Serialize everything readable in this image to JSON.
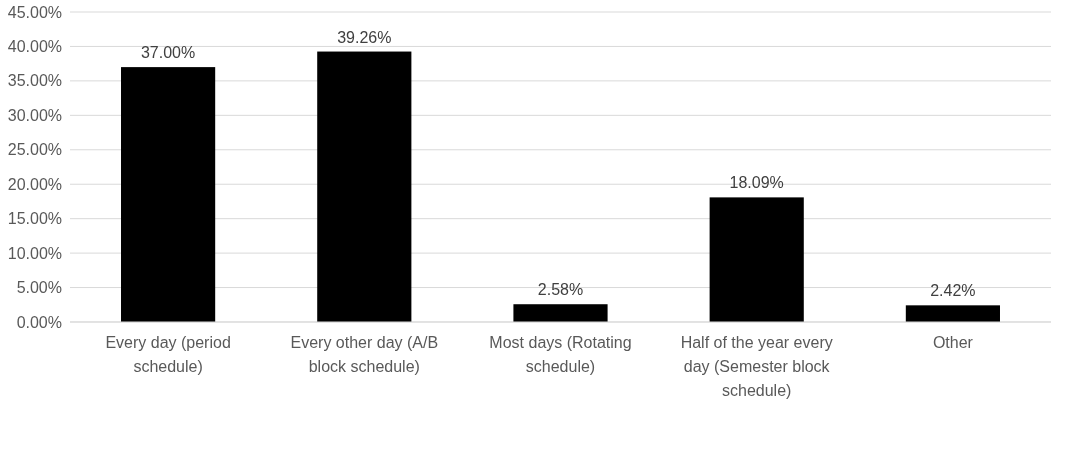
{
  "chart_data": {
    "type": "bar",
    "categories": [
      "Every day (period schedule)",
      "Every other day (A/B block schedule)",
      "Most days (Rotating schedule)",
      "Half of the year every day (Semester block schedule)",
      "Other"
    ],
    "values": [
      37,
      39.26,
      2.58,
      18.09,
      2.42
    ],
    "value_labels": [
      "37.00%",
      "39.26%",
      "2.58%",
      "18.09%",
      "2.42%"
    ],
    "color": "#000000",
    "ylim": [
      0,
      45
    ],
    "yticks": [
      {
        "value": 0,
        "label": "0.00%"
      },
      {
        "value": 5,
        "label": "5.00%"
      },
      {
        "value": 10,
        "label": "10.00%"
      },
      {
        "value": 15,
        "label": "15.00%"
      },
      {
        "value": 20,
        "label": "20.00%"
      },
      {
        "value": 25,
        "label": "25.00%"
      },
      {
        "value": 30,
        "label": "30.00%"
      },
      {
        "value": 35,
        "label": "35.00%"
      },
      {
        "value": 40,
        "label": "40.00%"
      },
      {
        "value": 45,
        "label": "45.00%"
      }
    ],
    "grid": "y"
  }
}
